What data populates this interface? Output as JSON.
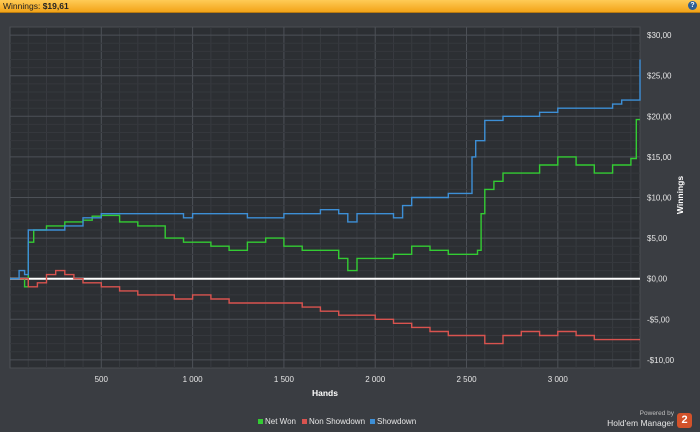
{
  "header": {
    "label": "Winnings:",
    "value": "$19,61",
    "help_icon": "?"
  },
  "branding": {
    "powered_by": "Powered by",
    "product": "Hold'em Manager",
    "logo_text": "2"
  },
  "chart_data": {
    "type": "line",
    "xlabel": "Hands",
    "ylabel": "Winnings",
    "xlim": [
      0,
      3450
    ],
    "ylim": [
      -11,
      31
    ],
    "x_ticks": [
      500,
      1000,
      1500,
      2000,
      2500,
      3000
    ],
    "x_tick_labels": [
      "500",
      "1 000",
      "1 500",
      "2 000",
      "2 500",
      "3 000"
    ],
    "y_ticks": [
      -10,
      -5,
      0,
      5,
      10,
      15,
      20,
      25,
      30
    ],
    "y_tick_labels": [
      "-$10,00",
      "-$5,00",
      "$0,00",
      "$5,00",
      "$10,00",
      "$15,00",
      "$20,00",
      "$25,00",
      "$30,00"
    ],
    "grid": true,
    "legend_position": "bottom-center",
    "series": [
      {
        "name": "Net Won",
        "color": "#33cc33",
        "x": [
          0,
          80,
          100,
          130,
          200,
          300,
          400,
          450,
          500,
          600,
          700,
          800,
          850,
          950,
          1000,
          1100,
          1200,
          1300,
          1400,
          1500,
          1600,
          1700,
          1800,
          1850,
          1900,
          2000,
          2100,
          2200,
          2300,
          2400,
          2500,
          2560,
          2580,
          2600,
          2650,
          2700,
          2800,
          2900,
          3000,
          3100,
          3200,
          3300,
          3400,
          3430,
          3450
        ],
        "y": [
          0,
          -1,
          4.5,
          6,
          6.5,
          7,
          7.2,
          7.7,
          7.8,
          7,
          6.5,
          6.5,
          5,
          4.5,
          4.5,
          4,
          3.5,
          4.5,
          5,
          4,
          3.5,
          3.5,
          2.5,
          1,
          2.5,
          2.5,
          3,
          4,
          3.5,
          3,
          3,
          3.5,
          8,
          11,
          12,
          13,
          13,
          14,
          15,
          14,
          13,
          14,
          14.8,
          19.6,
          19.6
        ]
      },
      {
        "name": "Non Showdown",
        "color": "#d9534f",
        "x": [
          0,
          100,
          150,
          200,
          250,
          300,
          350,
          400,
          500,
          600,
          700,
          800,
          900,
          1000,
          1100,
          1200,
          1300,
          1400,
          1500,
          1600,
          1700,
          1800,
          1900,
          2000,
          2100,
          2200,
          2300,
          2400,
          2500,
          2600,
          2700,
          2800,
          2900,
          3000,
          3100,
          3200,
          3300,
          3400,
          3450
        ],
        "y": [
          0,
          -1,
          -0.5,
          0.5,
          1,
          0.5,
          0,
          -0.5,
          -1,
          -1.5,
          -2,
          -2,
          -2.5,
          -2,
          -2.5,
          -3,
          -3,
          -3,
          -3,
          -3.5,
          -4,
          -4.5,
          -4.5,
          -5,
          -5.5,
          -6,
          -6.5,
          -7,
          -7,
          -8,
          -7,
          -6.5,
          -7,
          -6.5,
          -7,
          -7.5,
          -7.5,
          -7.5,
          -7.5
        ]
      },
      {
        "name": "Showdown",
        "color": "#3d8fd6",
        "x": [
          0,
          50,
          80,
          100,
          200,
          300,
          400,
          500,
          600,
          700,
          800,
          900,
          950,
          1000,
          1100,
          1200,
          1300,
          1400,
          1500,
          1600,
          1700,
          1800,
          1850,
          1900,
          2000,
          2100,
          2150,
          2200,
          2300,
          2400,
          2500,
          2530,
          2550,
          2600,
          2700,
          2800,
          2900,
          3000,
          3100,
          3200,
          3300,
          3350,
          3400,
          3450
        ],
        "y": [
          0,
          1,
          0.5,
          6,
          6,
          6.5,
          7.5,
          8,
          8,
          8,
          8,
          8,
          7.5,
          8,
          8,
          8,
          7.5,
          7.5,
          8,
          8,
          8.5,
          8,
          7,
          8,
          8,
          7.5,
          9,
          10,
          10,
          10.5,
          10.5,
          15,
          17,
          19.5,
          20,
          20,
          20.5,
          21,
          21,
          21,
          21.5,
          22,
          22,
          27
        ]
      }
    ]
  }
}
